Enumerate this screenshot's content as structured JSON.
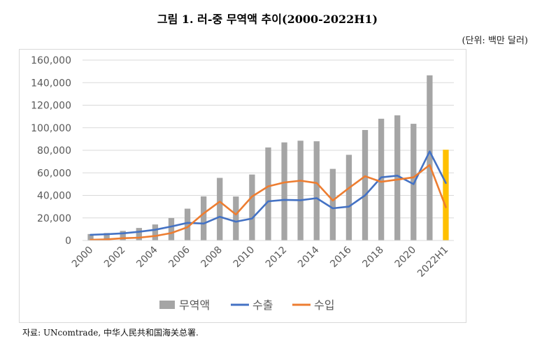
{
  "title": "그림 1. 러-중 무역액 추이(2000-2022H1)",
  "unit_label": "(단위: 백만 달러)",
  "source": "자료: UNcomtrade, 中华人民共和国海关总署.",
  "chart_data": {
    "type": "bar",
    "categories": [
      "2000",
      "2001",
      "2002",
      "2003",
      "2004",
      "2005",
      "2006",
      "2007",
      "2008",
      "2009",
      "2010",
      "2011",
      "2012",
      "2013",
      "2014",
      "2015",
      "2016",
      "2017",
      "2018",
      "2019",
      "2020",
      "2021",
      "2022H1"
    ],
    "tick_labels": [
      "2000",
      "",
      "2002",
      "",
      "2004",
      "",
      "2006",
      "",
      "2008",
      "",
      "2010",
      "",
      "2012",
      "",
      "2014",
      "",
      "2016",
      "",
      "2018",
      "",
      "2020",
      "",
      "2022H1"
    ],
    "ylim": [
      0,
      160000
    ],
    "yticks": [
      "0",
      "20,000",
      "40,000",
      "60,000",
      "80,000",
      "100,000",
      "120,000",
      "140,000",
      "160,000"
    ],
    "grid": true,
    "legend_position": "bottom",
    "series": [
      {
        "name": "무역액",
        "kind": "bar",
        "color": "#a5a5a5",
        "highlight_color": "#ffc000",
        "values": [
          5700,
          6600,
          8500,
          11100,
          14200,
          19900,
          28200,
          39100,
          55500,
          39000,
          58500,
          82500,
          87000,
          88500,
          88000,
          63500,
          76000,
          98000,
          108000,
          111000,
          103500,
          146500,
          80500
        ]
      },
      {
        "name": "수출",
        "kind": "line",
        "color": "#4472c4",
        "values": [
          5000,
          5500,
          6300,
          7700,
          9500,
          12400,
          15600,
          15000,
          21000,
          16700,
          19500,
          34700,
          36000,
          35700,
          37500,
          28500,
          30000,
          40000,
          56000,
          57500,
          50000,
          79000,
          51000
        ]
      },
      {
        "name": "수입",
        "kind": "line",
        "color": "#ed7d31",
        "values": [
          600,
          1000,
          2000,
          2500,
          4000,
          6600,
          11800,
          24000,
          34500,
          23000,
          39000,
          48000,
          51500,
          53000,
          51000,
          35500,
          46500,
          57000,
          52000,
          54000,
          56000,
          67000,
          29500
        ]
      }
    ]
  }
}
